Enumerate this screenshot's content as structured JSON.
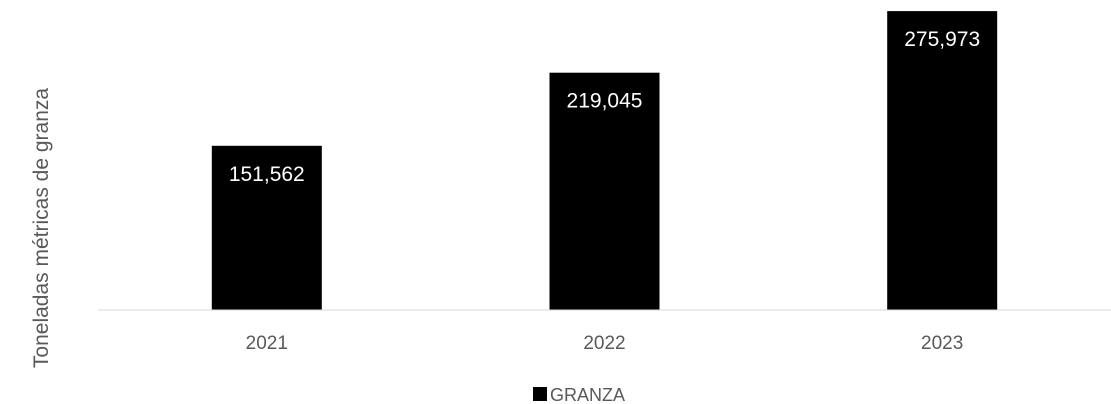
{
  "chart_data": {
    "type": "bar",
    "categories": [
      "2021",
      "2022",
      "2023"
    ],
    "series": [
      {
        "name": "GRANZA",
        "values": [
          151562,
          219045,
          275973
        ],
        "labels": [
          "151,562",
          "219,045",
          "275,973"
        ],
        "color": "#000000"
      }
    ],
    "ylabel": "Toneladas métricas de granza",
    "ylim": [
      0,
      300000
    ],
    "grid": false,
    "legend_position": "bottom",
    "colors": {
      "bar": "#000000",
      "data_label": "#ffffff",
      "axis": "#d9d9d9",
      "text": "#595959"
    }
  }
}
